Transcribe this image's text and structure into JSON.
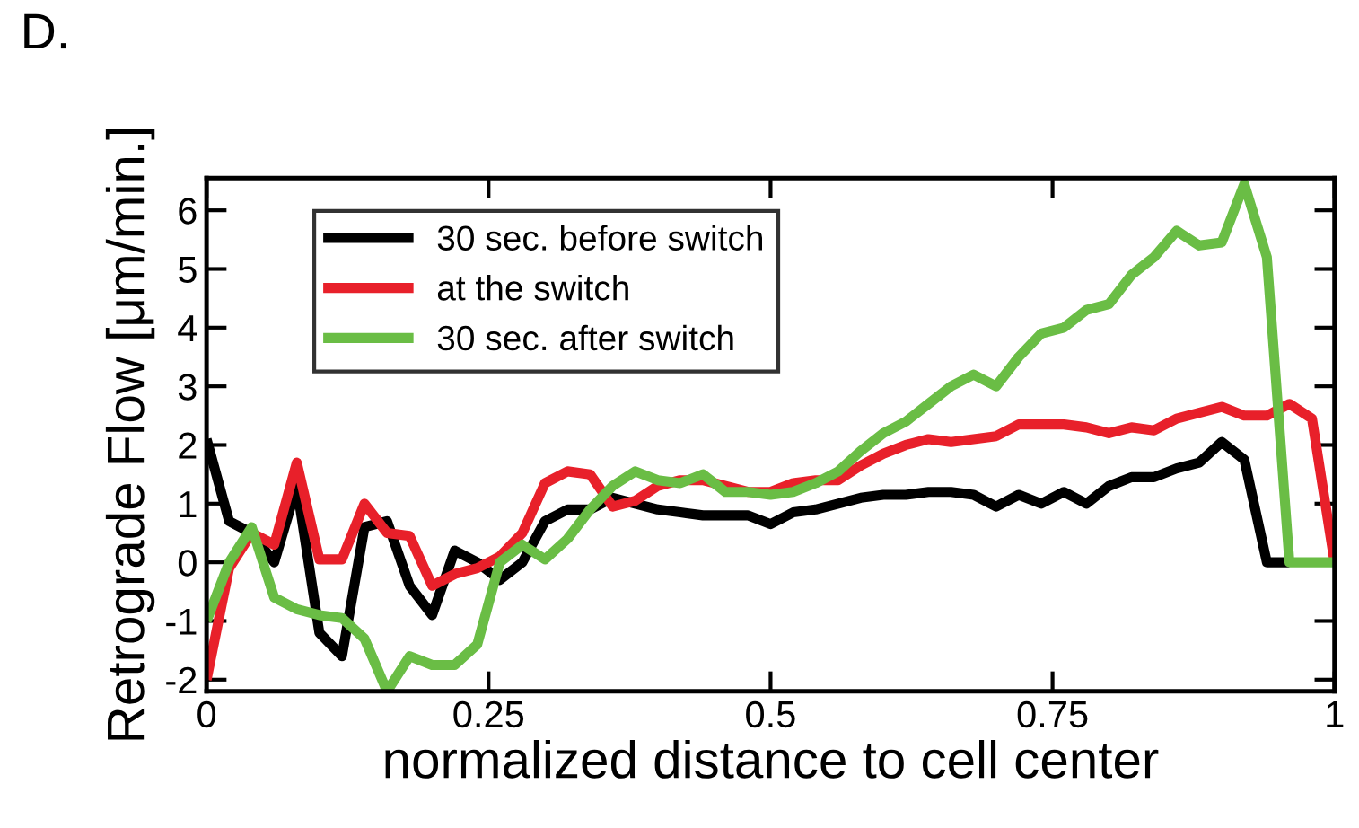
{
  "chart_data": {
    "type": "line",
    "xlabel": "normalized distance to cell center",
    "ylabel": "Retrograde Flow [μm/min.]",
    "annotations": [
      "D."
    ],
    "xlim": [
      0,
      1
    ],
    "ylim": [
      -2.2,
      6.55
    ],
    "xticks": [
      0,
      0.25,
      0.5,
      0.75,
      1
    ],
    "yticks": [
      -2,
      -1,
      0,
      1,
      2,
      3,
      4,
      5,
      6
    ],
    "grid": false,
    "legend": "top left",
    "marker": "none",
    "line_style": "solid",
    "series": [
      {
        "name": "30 sec. before switch",
        "color": "#000000",
        "x": [
          0,
          0.02,
          0.04,
          0.06,
          0.08,
          0.1,
          0.12,
          0.14,
          0.16,
          0.18,
          0.2,
          0.22,
          0.24,
          0.26,
          0.28,
          0.3,
          0.32,
          0.34,
          0.36,
          0.38,
          0.4,
          0.42,
          0.44,
          0.46,
          0.48,
          0.5,
          0.52,
          0.54,
          0.56,
          0.58,
          0.6,
          0.62,
          0.64,
          0.66,
          0.68,
          0.7,
          0.72,
          0.74,
          0.76,
          0.78,
          0.8,
          0.82,
          0.84,
          0.86,
          0.88,
          0.9,
          0.92,
          0.94,
          0.96
        ],
        "values": [
          2.1,
          0.7,
          0.5,
          0.0,
          1.3,
          -1.2,
          -1.6,
          0.6,
          0.7,
          -0.4,
          -0.9,
          0.2,
          0.0,
          -0.3,
          0.0,
          0.7,
          0.9,
          0.9,
          1.1,
          1.0,
          0.9,
          0.85,
          0.8,
          0.8,
          0.8,
          0.65,
          0.85,
          0.9,
          1.0,
          1.1,
          1.15,
          1.15,
          1.2,
          1.2,
          1.15,
          0.95,
          1.15,
          1.0,
          1.2,
          1.0,
          1.3,
          1.45,
          1.45,
          1.6,
          1.7,
          2.05,
          1.75,
          0,
          0
        ]
      },
      {
        "name": "at the switch",
        "color": "#e8202a",
        "x": [
          0,
          0.02,
          0.04,
          0.06,
          0.08,
          0.1,
          0.12,
          0.14,
          0.16,
          0.18,
          0.2,
          0.22,
          0.24,
          0.26,
          0.28,
          0.3,
          0.32,
          0.34,
          0.36,
          0.38,
          0.4,
          0.42,
          0.44,
          0.46,
          0.48,
          0.5,
          0.52,
          0.54,
          0.56,
          0.58,
          0.6,
          0.62,
          0.64,
          0.66,
          0.68,
          0.7,
          0.72,
          0.74,
          0.76,
          0.78,
          0.8,
          0.82,
          0.84,
          0.86,
          0.88,
          0.9,
          0.92,
          0.94,
          0.96,
          0.98,
          1.0
        ],
        "values": [
          -2.0,
          -0.1,
          0.5,
          0.3,
          1.7,
          0.05,
          0.05,
          1.0,
          0.5,
          0.45,
          -0.4,
          -0.2,
          -0.1,
          0.1,
          0.5,
          1.35,
          1.55,
          1.5,
          0.95,
          1.05,
          1.3,
          1.4,
          1.4,
          1.3,
          1.2,
          1.2,
          1.35,
          1.4,
          1.4,
          1.65,
          1.85,
          2.0,
          2.1,
          2.05,
          2.1,
          2.15,
          2.35,
          2.35,
          2.35,
          2.3,
          2.2,
          2.3,
          2.25,
          2.45,
          2.55,
          2.65,
          2.5,
          2.5,
          2.7,
          2.45,
          0
        ]
      },
      {
        "name": "30 sec. after switch",
        "color": "#6abd45",
        "x": [
          0,
          0.02,
          0.04,
          0.06,
          0.08,
          0.1,
          0.12,
          0.14,
          0.16,
          0.18,
          0.2,
          0.22,
          0.24,
          0.26,
          0.28,
          0.3,
          0.32,
          0.34,
          0.36,
          0.38,
          0.4,
          0.42,
          0.44,
          0.46,
          0.48,
          0.5,
          0.52,
          0.54,
          0.56,
          0.58,
          0.6,
          0.62,
          0.64,
          0.66,
          0.68,
          0.7,
          0.72,
          0.74,
          0.76,
          0.78,
          0.8,
          0.82,
          0.84,
          0.86,
          0.88,
          0.9,
          0.92,
          0.94,
          0.96,
          0.98,
          1.0
        ],
        "values": [
          -1.0,
          0.0,
          0.6,
          -0.6,
          -0.8,
          -0.9,
          -0.95,
          -1.3,
          -2.2,
          -1.6,
          -1.75,
          -1.75,
          -1.4,
          0.0,
          0.3,
          0.05,
          0.4,
          0.9,
          1.3,
          1.55,
          1.4,
          1.35,
          1.5,
          1.2,
          1.2,
          1.15,
          1.2,
          1.35,
          1.55,
          1.9,
          2.2,
          2.4,
          2.7,
          3.0,
          3.2,
          3.0,
          3.5,
          3.9,
          4.0,
          4.3,
          4.4,
          4.9,
          5.2,
          5.65,
          5.4,
          5.45,
          6.45,
          5.2,
          0,
          0,
          0
        ]
      }
    ]
  }
}
